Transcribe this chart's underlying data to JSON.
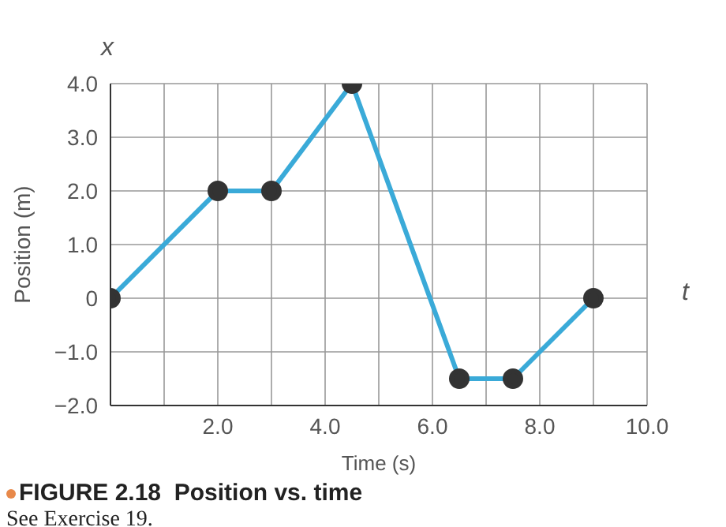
{
  "chart_data": {
    "type": "line",
    "title": "FIGURE 2.18  Position vs. time",
    "xlabel": "Time (s)",
    "ylabel": "Position (m)",
    "annotations": [
      "x",
      "t",
      "See Exercise 19."
    ],
    "x": [
      0,
      2,
      3,
      4.5,
      6.5,
      7.5,
      9
    ],
    "series": [
      {
        "color": "#3aaad8",
        "values": [
          0,
          2,
          2,
          4,
          -1.5,
          -1.5,
          0
        ]
      }
    ],
    "xlim": [
      0,
      10
    ],
    "xticks": [
      {
        "value": 1,
        "label": null
      },
      {
        "value": 2,
        "label": "2.0"
      },
      {
        "value": 3,
        "label": null
      },
      {
        "value": 4,
        "label": "4.0"
      },
      {
        "value": 5,
        "label": null
      },
      {
        "value": 6,
        "label": "6.0"
      },
      {
        "value": 7,
        "label": null
      },
      {
        "value": 8,
        "label": "8.0"
      },
      {
        "value": 9,
        "label": null
      },
      {
        "value": 10,
        "label": "10.0"
      }
    ],
    "ylim": [
      -2,
      4
    ],
    "yticks": [
      {
        "value": -2,
        "label": "−2.0"
      },
      {
        "value": -1,
        "label": "−1.0"
      },
      0,
      {
        "value": 1,
        "label": "1.0"
      },
      {
        "value": 2,
        "label": "2.0"
      },
      {
        "value": 3,
        "label": "3.0"
      },
      {
        "value": 4,
        "label": "4.0"
      }
    ],
    "grid": true,
    "marker": "circle",
    "line_style": "solid",
    "legend": false
  }
}
